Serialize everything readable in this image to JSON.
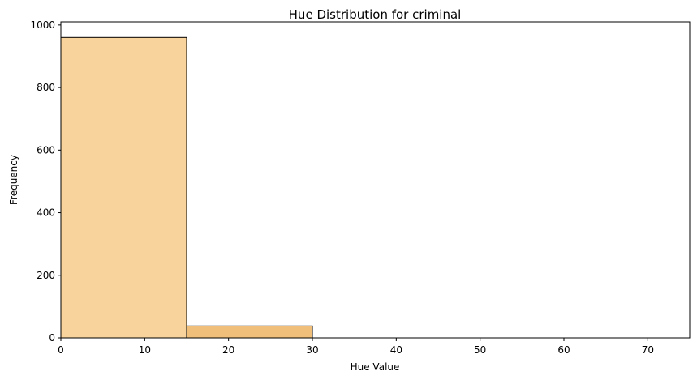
{
  "chart_data": {
    "type": "bar",
    "title": "Hue Distribution for criminal",
    "xlabel": "Hue Value",
    "ylabel": "Frequency",
    "xlim": [
      0,
      75
    ],
    "ylim": [
      0,
      1010
    ],
    "x_ticks": [
      0,
      10,
      20,
      30,
      40,
      50,
      60,
      70
    ],
    "y_ticks": [
      0,
      200,
      400,
      600,
      800,
      1000
    ],
    "bins": [
      {
        "x0": 0,
        "x1": 15,
        "value": 960,
        "color": "#f9d39c"
      },
      {
        "x0": 15,
        "x1": 30,
        "value": 38,
        "color": "#f0bf79"
      }
    ],
    "grid": false,
    "legend": "none"
  }
}
